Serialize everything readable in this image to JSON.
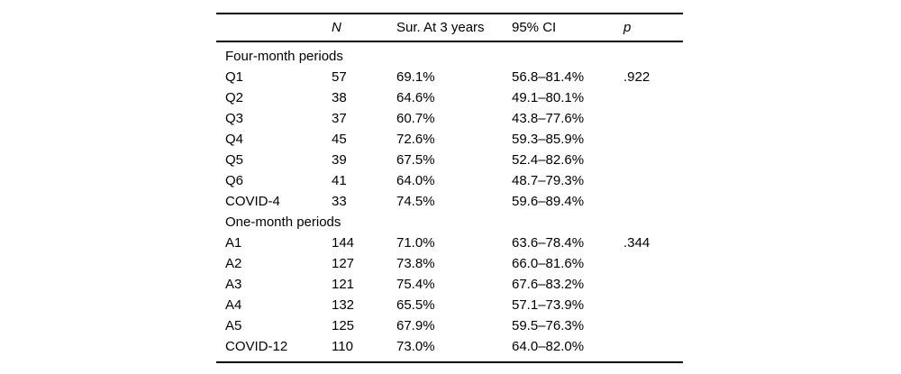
{
  "colors": {
    "background": "#ffffff",
    "text": "#000000",
    "rule": "#000000"
  },
  "table": {
    "headers": [
      "",
      "N",
      "Sur. At 3 years",
      "95% CI",
      "p"
    ],
    "sections": [
      {
        "title": "Four-month periods",
        "rows": [
          {
            "label": "Q1",
            "n": "57",
            "sur": "69.1%",
            "ci": "56.8–81.4%",
            "p": ".922"
          },
          {
            "label": "Q2",
            "n": "38",
            "sur": "64.6%",
            "ci": "49.1–80.1%",
            "p": ""
          },
          {
            "label": "Q3",
            "n": "37",
            "sur": "60.7%",
            "ci": "43.8–77.6%",
            "p": ""
          },
          {
            "label": "Q4",
            "n": "45",
            "sur": "72.6%",
            "ci": "59.3–85.9%",
            "p": ""
          },
          {
            "label": "Q5",
            "n": "39",
            "sur": "67.5%",
            "ci": "52.4–82.6%",
            "p": ""
          },
          {
            "label": "Q6",
            "n": "41",
            "sur": "64.0%",
            "ci": "48.7–79.3%",
            "p": ""
          },
          {
            "label": "COVID-4",
            "n": "33",
            "sur": "74.5%",
            "ci": "59.6–89.4%",
            "p": ""
          }
        ]
      },
      {
        "title": "One-month periods",
        "rows": [
          {
            "label": "A1",
            "n": "144",
            "sur": "71.0%",
            "ci": "63.6–78.4%",
            "p": ".344"
          },
          {
            "label": "A2",
            "n": "127",
            "sur": "73.8%",
            "ci": "66.0–81.6%",
            "p": ""
          },
          {
            "label": "A3",
            "n": "121",
            "sur": "75.4%",
            "ci": "67.6–83.2%",
            "p": ""
          },
          {
            "label": "A4",
            "n": "132",
            "sur": "65.5%",
            "ci": "57.1–73.9%",
            "p": ""
          },
          {
            "label": "A5",
            "n": "125",
            "sur": "67.9%",
            "ci": "59.5–76.3%",
            "p": ""
          },
          {
            "label": "COVID-12",
            "n": "110",
            "sur": "73.0%",
            "ci": "64.0–82.0%",
            "p": ""
          }
        ]
      }
    ]
  },
  "chart_data": {
    "type": "table",
    "title": "",
    "columns": [
      "",
      "N",
      "Sur. At 3 years",
      "95% CI",
      "p"
    ],
    "rows": [
      [
        "Four-month periods",
        "",
        "",
        "",
        ""
      ],
      [
        "Q1",
        "57",
        "69.1%",
        "56.8–81.4%",
        ".922"
      ],
      [
        "Q2",
        "38",
        "64.6%",
        "49.1–80.1%",
        ""
      ],
      [
        "Q3",
        "37",
        "60.7%",
        "43.8–77.6%",
        ""
      ],
      [
        "Q4",
        "45",
        "72.6%",
        "59.3–85.9%",
        ""
      ],
      [
        "Q5",
        "39",
        "67.5%",
        "52.4–82.6%",
        ""
      ],
      [
        "Q6",
        "41",
        "64.0%",
        "48.7–79.3%",
        ""
      ],
      [
        "COVID-4",
        "33",
        "74.5%",
        "59.6–89.4%",
        ""
      ],
      [
        "One-month periods",
        "",
        "",
        "",
        ""
      ],
      [
        "A1",
        "144",
        "71.0%",
        "63.6–78.4%",
        ".344"
      ],
      [
        "A2",
        "127",
        "73.8%",
        "66.0–81.6%",
        ""
      ],
      [
        "A3",
        "121",
        "75.4%",
        "67.6–83.2%",
        ""
      ],
      [
        "A4",
        "132",
        "65.5%",
        "57.1–73.9%",
        ""
      ],
      [
        "A5",
        "125",
        "67.9%",
        "59.5–76.3%",
        ""
      ],
      [
        "COVID-12",
        "110",
        "73.0%",
        "64.0–82.0%",
        ""
      ]
    ]
  }
}
